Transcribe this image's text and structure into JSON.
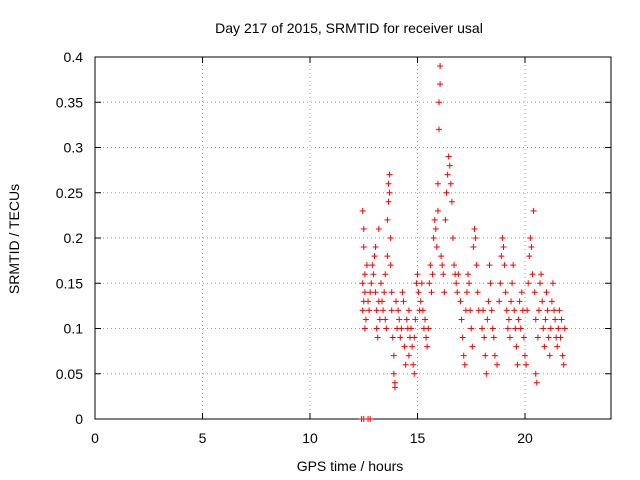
{
  "chart_data": {
    "type": "scatter",
    "title": "Day 217 of 2015, SRMTID for receiver usal",
    "xlabel": "GPS time / hours",
    "ylabel": "SRMTID / TECUs",
    "xlim": [
      0,
      24
    ],
    "ylim": [
      0,
      0.4
    ],
    "xticks": [
      "0",
      "5",
      "10",
      "15",
      "20"
    ],
    "yticks": [
      "0",
      "0.05",
      "0.1",
      "0.15",
      "0.2",
      "0.25",
      "0.3",
      "0.35",
      "0.4"
    ],
    "grid": true,
    "marker": "+",
    "color": "#ff0000",
    "series": [
      {
        "name": "",
        "points": [
          [
            12.4,
            0.0
          ],
          [
            12.5,
            0.0
          ],
          [
            12.7,
            0.0
          ],
          [
            12.8,
            0.0
          ],
          [
            12.45,
            0.23
          ],
          [
            12.5,
            0.21
          ],
          [
            12.5,
            0.19
          ],
          [
            12.55,
            0.16
          ],
          [
            12.45,
            0.15
          ],
          [
            12.55,
            0.14
          ],
          [
            12.5,
            0.13
          ],
          [
            12.45,
            0.12
          ],
          [
            12.6,
            0.11
          ],
          [
            12.55,
            0.1
          ],
          [
            12.65,
            0.17
          ],
          [
            12.7,
            0.13
          ],
          [
            12.75,
            0.12
          ],
          [
            12.8,
            0.14
          ],
          [
            12.85,
            0.15
          ],
          [
            12.9,
            0.17
          ],
          [
            12.95,
            0.16
          ],
          [
            13.0,
            0.18
          ],
          [
            13.05,
            0.19
          ],
          [
            13.05,
            0.14
          ],
          [
            13.1,
            0.12
          ],
          [
            13.1,
            0.1
          ],
          [
            13.15,
            0.09
          ],
          [
            13.2,
            0.21
          ],
          [
            13.2,
            0.13
          ],
          [
            13.25,
            0.11
          ],
          [
            13.3,
            0.15
          ],
          [
            13.35,
            0.13
          ],
          [
            13.4,
            0.12
          ],
          [
            13.45,
            0.14
          ],
          [
            13.5,
            0.16
          ],
          [
            13.5,
            0.11
          ],
          [
            13.55,
            0.1
          ],
          [
            13.6,
            0.18
          ],
          [
            13.6,
            0.22
          ],
          [
            13.65,
            0.24
          ],
          [
            13.65,
            0.26
          ],
          [
            13.7,
            0.27
          ],
          [
            13.7,
            0.25
          ],
          [
            13.75,
            0.2
          ],
          [
            13.75,
            0.17
          ],
          [
            13.8,
            0.14
          ],
          [
            13.8,
            0.12
          ],
          [
            13.85,
            0.09
          ],
          [
            13.9,
            0.07
          ],
          [
            13.9,
            0.05
          ],
          [
            13.95,
            0.04
          ],
          [
            13.95,
            0.035
          ],
          [
            14.0,
            0.13
          ],
          [
            14.05,
            0.1
          ],
          [
            14.1,
            0.12
          ],
          [
            14.15,
            0.11
          ],
          [
            14.2,
            0.09
          ],
          [
            14.25,
            0.1
          ],
          [
            14.3,
            0.14
          ],
          [
            14.35,
            0.13
          ],
          [
            14.4,
            0.08
          ],
          [
            14.45,
            0.06
          ],
          [
            14.5,
            0.11
          ],
          [
            14.55,
            0.1
          ],
          [
            14.6,
            0.12
          ],
          [
            14.6,
            0.07
          ],
          [
            14.65,
            0.09
          ],
          [
            14.7,
            0.1
          ],
          [
            14.75,
            0.08
          ],
          [
            14.8,
            0.06
          ],
          [
            14.85,
            0.05
          ],
          [
            14.85,
            0.09
          ],
          [
            14.9,
            0.11
          ],
          [
            14.95,
            0.15
          ],
          [
            15.0,
            0.16
          ],
          [
            15.05,
            0.14
          ],
          [
            15.1,
            0.12
          ],
          [
            15.15,
            0.13
          ],
          [
            15.2,
            0.15
          ],
          [
            15.25,
            0.12
          ],
          [
            15.3,
            0.1
          ],
          [
            15.35,
            0.11
          ],
          [
            15.4,
            0.09
          ],
          [
            15.45,
            0.08
          ],
          [
            15.5,
            0.1
          ],
          [
            15.55,
            0.15
          ],
          [
            15.6,
            0.17
          ],
          [
            15.65,
            0.14
          ],
          [
            15.7,
            0.16
          ],
          [
            15.75,
            0.2
          ],
          [
            15.8,
            0.22
          ],
          [
            15.85,
            0.21
          ],
          [
            15.9,
            0.19
          ],
          [
            15.95,
            0.23
          ],
          [
            15.95,
            0.26
          ],
          [
            16.0,
            0.32
          ],
          [
            16.0,
            0.35
          ],
          [
            16.05,
            0.37
          ],
          [
            16.05,
            0.39
          ],
          [
            16.1,
            0.18
          ],
          [
            16.15,
            0.17
          ],
          [
            16.2,
            0.16
          ],
          [
            16.25,
            0.14
          ],
          [
            16.3,
            0.22
          ],
          [
            16.35,
            0.25
          ],
          [
            16.4,
            0.27
          ],
          [
            16.45,
            0.29
          ],
          [
            16.5,
            0.28
          ],
          [
            16.55,
            0.26
          ],
          [
            16.6,
            0.24
          ],
          [
            16.65,
            0.2
          ],
          [
            16.7,
            0.17
          ],
          [
            16.75,
            0.16
          ],
          [
            16.8,
            0.15
          ],
          [
            16.85,
            0.14
          ],
          [
            16.9,
            0.16
          ],
          [
            17.0,
            0.13
          ],
          [
            17.05,
            0.11
          ],
          [
            17.1,
            0.09
          ],
          [
            17.15,
            0.07
          ],
          [
            17.2,
            0.06
          ],
          [
            17.25,
            0.12
          ],
          [
            17.3,
            0.14
          ],
          [
            17.35,
            0.16
          ],
          [
            17.4,
            0.15
          ],
          [
            17.45,
            0.12
          ],
          [
            17.5,
            0.1
          ],
          [
            17.55,
            0.08
          ],
          [
            17.6,
            0.19
          ],
          [
            17.65,
            0.21
          ],
          [
            17.7,
            0.2
          ],
          [
            17.75,
            0.17
          ],
          [
            17.8,
            0.14
          ],
          [
            17.85,
            0.12
          ],
          [
            18.0,
            0.1
          ],
          [
            18.05,
            0.12
          ],
          [
            18.1,
            0.09
          ],
          [
            18.15,
            0.07
          ],
          [
            18.2,
            0.05
          ],
          [
            18.25,
            0.11
          ],
          [
            18.3,
            0.13
          ],
          [
            18.35,
            0.17
          ],
          [
            18.4,
            0.15
          ],
          [
            18.45,
            0.12
          ],
          [
            18.5,
            0.1
          ],
          [
            18.55,
            0.09
          ],
          [
            18.6,
            0.07
          ],
          [
            18.7,
            0.06
          ],
          [
            18.8,
            0.13
          ],
          [
            18.85,
            0.15
          ],
          [
            18.9,
            0.18
          ],
          [
            18.95,
            0.2
          ],
          [
            19.0,
            0.19
          ],
          [
            19.05,
            0.17
          ],
          [
            19.1,
            0.14
          ],
          [
            19.15,
            0.12
          ],
          [
            19.2,
            0.1
          ],
          [
            19.25,
            0.11
          ],
          [
            19.3,
            0.09
          ],
          [
            19.35,
            0.13
          ],
          [
            19.4,
            0.15
          ],
          [
            19.45,
            0.17
          ],
          [
            19.5,
            0.12
          ],
          [
            19.55,
            0.1
          ],
          [
            19.6,
            0.08
          ],
          [
            19.65,
            0.06
          ],
          [
            19.7,
            0.11
          ],
          [
            19.75,
            0.13
          ],
          [
            19.8,
            0.1
          ],
          [
            19.85,
            0.14
          ],
          [
            19.9,
            0.12
          ],
          [
            19.95,
            0.09
          ],
          [
            20.0,
            0.07
          ],
          [
            20.05,
            0.06
          ],
          [
            20.1,
            0.12
          ],
          [
            20.15,
            0.15
          ],
          [
            20.2,
            0.18
          ],
          [
            20.25,
            0.2
          ],
          [
            20.3,
            0.19
          ],
          [
            20.35,
            0.16
          ],
          [
            20.4,
            0.23
          ],
          [
            20.45,
            0.14
          ],
          [
            20.5,
            0.11
          ],
          [
            20.5,
            0.05
          ],
          [
            20.55,
            0.04
          ],
          [
            20.6,
            0.09
          ],
          [
            20.65,
            0.12
          ],
          [
            20.7,
            0.15
          ],
          [
            20.75,
            0.16
          ],
          [
            20.8,
            0.13
          ],
          [
            20.85,
            0.1
          ],
          [
            20.9,
            0.08
          ],
          [
            20.95,
            0.11
          ],
          [
            21.0,
            0.14
          ],
          [
            21.05,
            0.12
          ],
          [
            21.1,
            0.09
          ],
          [
            21.15,
            0.07
          ],
          [
            21.2,
            0.1
          ],
          [
            21.25,
            0.13
          ],
          [
            21.3,
            0.15
          ],
          [
            21.35,
            0.12
          ],
          [
            21.4,
            0.11
          ],
          [
            21.45,
            0.09
          ],
          [
            21.5,
            0.08
          ],
          [
            21.55,
            0.1
          ],
          [
            21.6,
            0.12
          ],
          [
            21.65,
            0.09
          ],
          [
            21.7,
            0.11
          ],
          [
            21.75,
            0.07
          ],
          [
            21.8,
            0.06
          ],
          [
            21.85,
            0.1
          ]
        ]
      }
    ]
  }
}
